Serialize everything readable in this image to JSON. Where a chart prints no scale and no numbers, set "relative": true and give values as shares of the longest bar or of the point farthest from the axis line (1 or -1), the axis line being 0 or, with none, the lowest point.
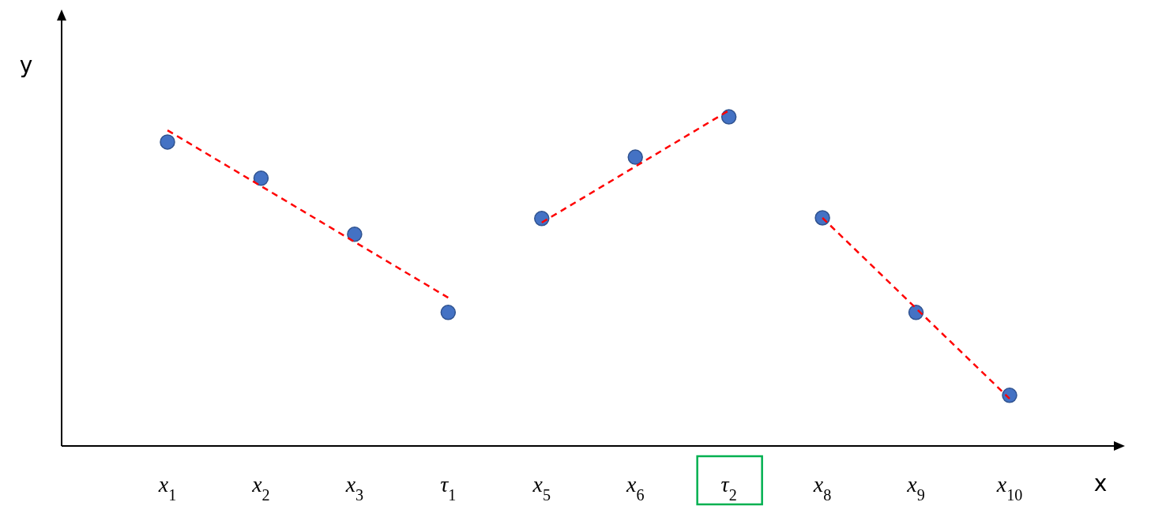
{
  "chart_data": {
    "type": "scatter",
    "relative": true,
    "xlabel": "x",
    "ylabel": "y",
    "categories": [
      "x$_{1}$",
      "x$_{2}$",
      "x$_{3}$",
      "τ$_{1}$",
      "x$_{5}$",
      "x$_{6}$",
      "τ$_{2}$",
      "x$_{8}$",
      "x$_{9}$",
      "x$_{10}$"
    ],
    "marker": "circle",
    "series": [
      {
        "type": "line",
        "color": "#ff0000",
        "line_style": "dashed",
        "marker": "none",
        "values": [
          0.941,
          null,
          null,
          0.442,
          null,
          null,
          null,
          null,
          null,
          null
        ]
      },
      {
        "type": "line",
        "color": "#ff0000",
        "line_style": "dashed",
        "marker": "none",
        "values": [
          null,
          null,
          null,
          null,
          0.666,
          null,
          1.0,
          null,
          null,
          null
        ]
      },
      {
        "type": "line",
        "color": "#ff0000",
        "line_style": "dashed",
        "marker": "none",
        "values": [
          null,
          null,
          null,
          null,
          null,
          null,
          null,
          0.68,
          null,
          0.141
        ]
      },
      {
        "color": "#4472c4",
        "values": [
          0.906,
          0.798,
          0.631,
          0.398,
          0.678,
          0.861,
          0.981,
          0.68,
          0.398,
          0.151
        ]
      }
    ]
  }
}
